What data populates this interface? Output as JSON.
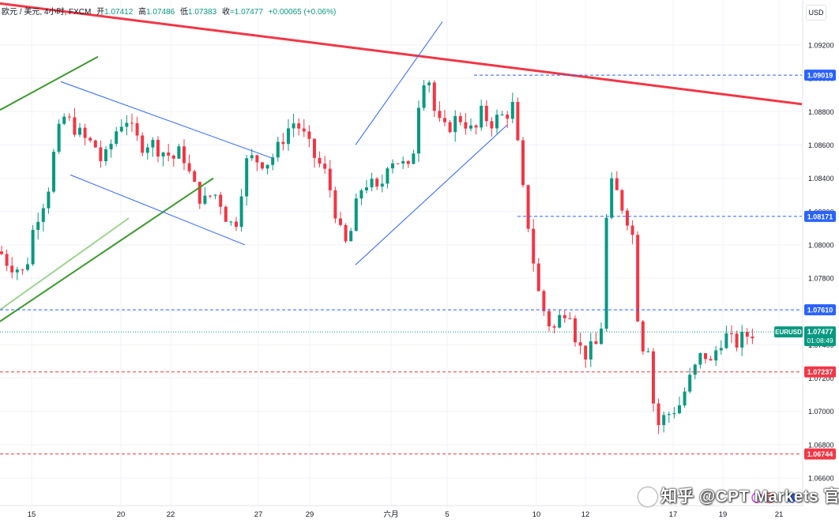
{
  "legend": {
    "symbol": "欧元 / 美元, 4小时, FXCM",
    "open_label": "开",
    "open": "1.07412",
    "high_label": "高",
    "high": "1.07486",
    "low_label": "低",
    "low": "1.07383",
    "close_label": "收",
    "close": "=1.07477",
    "change": "+0.00065 (+0.06%)"
  },
  "currency_button": "USD",
  "price_axis": {
    "ticks": [
      "1.09200",
      "1.09000",
      "1.08800",
      "1.08600",
      "1.08400",
      "1.08200",
      "1.08000",
      "1.07800",
      "1.07600",
      "1.07400",
      "1.07200",
      "1.07000",
      "1.06800",
      "1.06600"
    ]
  },
  "time_axis": {
    "labels": [
      "15",
      "20",
      "22",
      "27",
      "29",
      "六月",
      "5",
      "10",
      "12",
      "17",
      "19",
      "21"
    ]
  },
  "price_labels": [
    {
      "value": "1.09019",
      "color": "#2962ff"
    },
    {
      "value": "1.08171",
      "color": "#2962ff"
    },
    {
      "value": "1.07610",
      "color": "#2962ff"
    },
    {
      "value": "1.07237",
      "color": "#f23645"
    },
    {
      "value": "1.06744",
      "color": "#f23645"
    }
  ],
  "current_price": {
    "symbol_tag": "EURUSD",
    "price": "1.07477",
    "countdown": "01:08:49",
    "color": "#089981"
  },
  "colors": {
    "up": "#089981",
    "down": "#f23645",
    "channel": "#2962ff",
    "trend_red": "#f23645",
    "trend_green": "#3d9a2e"
  },
  "icons": [
    "lightning-icon",
    "us-flag-icon",
    "event-icon"
  ],
  "watermark": "知乎 @CPT Markets 官方"
}
